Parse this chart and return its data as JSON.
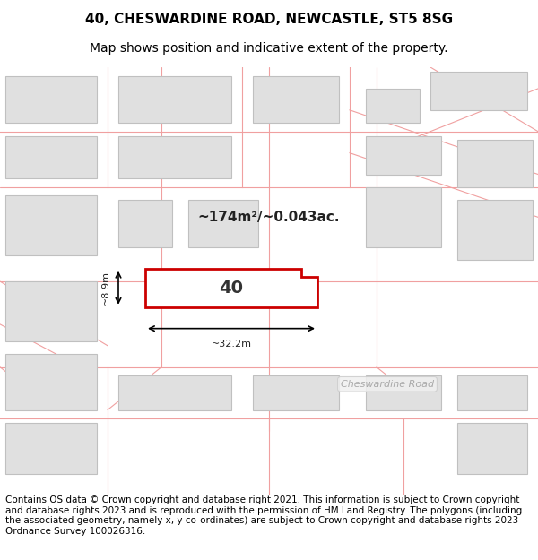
{
  "title_line1": "40, CHESWARDINE ROAD, NEWCASTLE, ST5 8SG",
  "title_line2": "Map shows position and indicative extent of the property.",
  "footer_text": "Contains OS data © Crown copyright and database right 2021. This information is subject to Crown copyright and database rights 2023 and is reproduced with the permission of HM Land Registry. The polygons (including the associated geometry, namely x, y co-ordinates) are subject to Crown copyright and database rights 2023 Ordnance Survey 100026316.",
  "area_label": "~174m²/~0.043ac.",
  "property_number": "40",
  "width_label": "~32.2m",
  "height_label": "~8.9m",
  "road_label": "Cheswardine Road",
  "bg_color": "#ffffff",
  "map_bg": "#f8f8f8",
  "building_fill": "#e0e0e0",
  "building_stroke": "#c0c0c0",
  "road_line_color": "#f0a0a0",
  "property_fill": "#ffffff",
  "property_stroke": "#cc0000",
  "title_fontsize": 11,
  "subtitle_fontsize": 10,
  "footer_fontsize": 7.5
}
